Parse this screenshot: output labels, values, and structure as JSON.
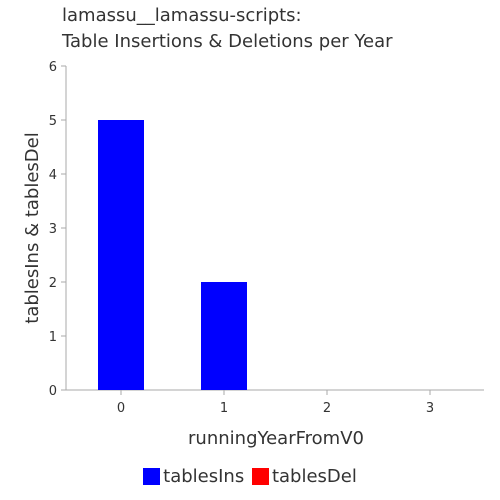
{
  "chart_data": {
    "type": "bar",
    "title_lines": [
      "lamassu__lamassu-scripts:",
      "Table Insertions & Deletions per Year"
    ],
    "xlabel": "runningYearFromV0",
    "ylabel": "tablesIns & tablesDel",
    "categories": [
      "0",
      "1",
      "2",
      "3"
    ],
    "series": [
      {
        "name": "tablesIns",
        "color": "#0000ff",
        "values": [
          5,
          2,
          0,
          0
        ]
      },
      {
        "name": "tablesDel",
        "color": "#ff0000",
        "values": [
          0,
          0,
          0,
          0
        ]
      }
    ],
    "ylim": [
      0,
      6
    ],
    "yticks": [
      "0",
      "1",
      "2",
      "3",
      "4",
      "5",
      "6"
    ],
    "grid": false,
    "legend_position": "bottom"
  }
}
